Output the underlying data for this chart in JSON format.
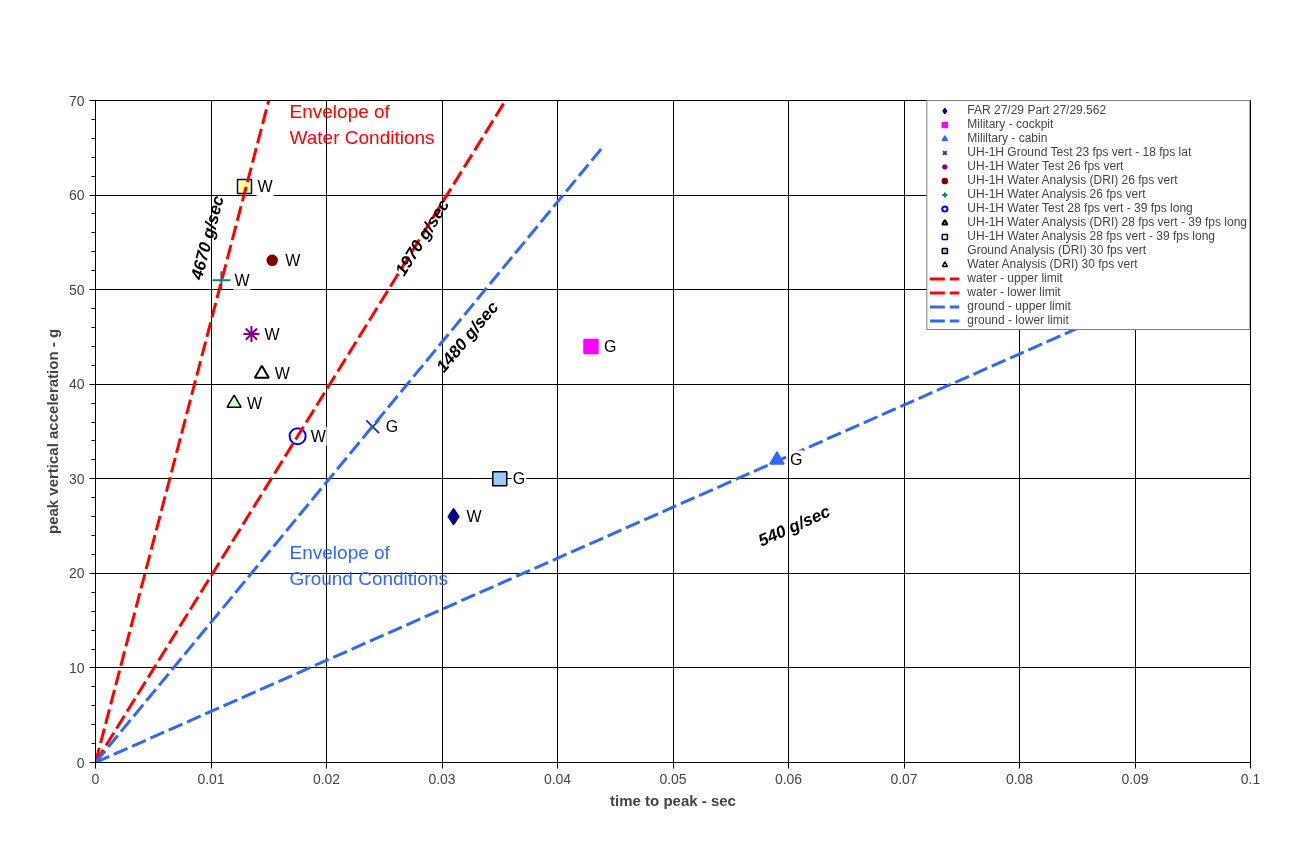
{
  "chart_data": {
    "type": "scatter",
    "xlabel": "time to peak - sec",
    "ylabel": "peak vertical acceleration - g",
    "xlim": [
      0,
      0.1
    ],
    "ylim": [
      0,
      70
    ],
    "xticks": [
      0,
      0.01,
      0.02,
      0.03,
      0.04,
      0.05,
      0.06,
      0.07,
      0.08,
      0.09,
      0.1
    ],
    "yticks": [
      0,
      10,
      20,
      30,
      40,
      50,
      60,
      70
    ],
    "grid": true,
    "legend": "top right",
    "series": [
      {
        "name": "FAR 27/29 Part 27/29.562",
        "marker": "diamond",
        "color": "#000080",
        "x": [
          0.031
        ],
        "values": [
          26
        ]
      },
      {
        "name": "Military - cockpit",
        "marker": "square",
        "color": "#ff00ff",
        "x": [
          0.0429
        ],
        "values": [
          44
        ]
      },
      {
        "name": "Mililtary - cabin",
        "marker": "triangle",
        "color": "#3366ff",
        "x": [
          0.059
        ],
        "values": [
          32
        ]
      },
      {
        "name": "UH-1H Ground Test 23 fps vert - 18 fps lat",
        "marker": "x",
        "color": "#333399",
        "x": [
          0.024
        ],
        "values": [
          35.5
        ]
      },
      {
        "name": "UH-1H Water Test 26 fps vert",
        "marker": "cross",
        "color": "#800080",
        "x": [
          0.0135
        ],
        "values": [
          45.3
        ]
      },
      {
        "name": "UH-1H Water Analysis (DRI) 26 fps vert",
        "marker": "circle",
        "color": "#800000",
        "x": [
          0.0153
        ],
        "values": [
          53.1
        ]
      },
      {
        "name": "UH-1H Water Analysis 26 fps vert",
        "marker": "cross",
        "color": "#008080",
        "x": [
          0.0109
        ],
        "values": [
          51
        ]
      },
      {
        "name": "UH-1H Water Test 28 fps vert - 39 fps long",
        "marker": "circle",
        "color": "#0000ff",
        "x": [
          0.0175
        ],
        "values": [
          34.5
        ]
      },
      {
        "name": "UH-1H Water Analysis (DRI) 28 fps vert - 39 fps long",
        "marker": "triangle",
        "color": "#000000",
        "x": [
          0.0144
        ],
        "values": [
          41.1
        ]
      },
      {
        "name": "UH-1H Water Analysis 28 fps vert - 39 fps long",
        "marker": "square",
        "color": "#ffff99",
        "x": [
          0.0129
        ],
        "values": [
          60.9
        ]
      },
      {
        "name": "Ground Analysis (DRI) 30 fps vert",
        "marker": "square",
        "color": "#99ccff",
        "x": [
          0.035
        ],
        "values": [
          30
        ]
      },
      {
        "name": "Water Analysis (DRI) 30 fps vert",
        "marker": "triangle",
        "color": "#ccffcc",
        "x": [
          0.012
        ],
        "values": [
          38
        ]
      },
      {
        "name": "water - upper limit",
        "type": "line",
        "line_style": "dashed",
        "color": "#ff0000",
        "x": [
          0,
          0.015
        ],
        "values": [
          0,
          70
        ]
      },
      {
        "name": "water - lower limit",
        "type": "line",
        "line_style": "dashed",
        "color": "#ff0000",
        "x": [
          0,
          0.0355
        ],
        "values": [
          0,
          70
        ]
      },
      {
        "name": "ground - upper limit",
        "type": "line",
        "line_style": "dashed",
        "color": "#3366ff",
        "x": [
          0,
          0.044
        ],
        "values": [
          0,
          65.2
        ]
      },
      {
        "name": "ground - lower limit",
        "type": "line",
        "line_style": "dashed",
        "color": "#3366ff",
        "x": [
          0,
          0.085
        ],
        "values": [
          0,
          45.9
        ]
      }
    ],
    "annotations": [
      "Envelope of\nWater Conditions",
      "Envelope of\nGround Conditions",
      "4670 g/sec",
      {
        "text": "1970 g/sec",
        "x": 0.0283,
        "y": 55.5
      },
      "1480 g/sec",
      "540 g/sec",
      {
        "text": "W",
        "x": 0.031,
        "y": 26
      },
      {
        "text": "G",
        "x": 0.0429,
        "y": 44
      },
      {
        "text": "G",
        "x": 0.059,
        "y": 32
      },
      {
        "text": "G",
        "x": 0.024,
        "y": 35.5
      },
      {
        "text": "W",
        "x": 0.0135,
        "y": 45.3
      },
      {
        "text": "W",
        "x": 0.0153,
        "y": 53.1
      },
      {
        "text": "W",
        "x": 0.0109,
        "y": 51
      },
      {
        "text": "W",
        "x": 0.0175,
        "y": 34.5
      },
      {
        "text": "W",
        "x": 0.0144,
        "y": 41.1
      },
      {
        "text": "W",
        "x": 0.0129,
        "y": 60.9
      },
      {
        "text": "G",
        "x": 0.035,
        "y": 30
      },
      {
        "text": "W",
        "x": 0.012,
        "y": 38
      }
    ]
  }
}
